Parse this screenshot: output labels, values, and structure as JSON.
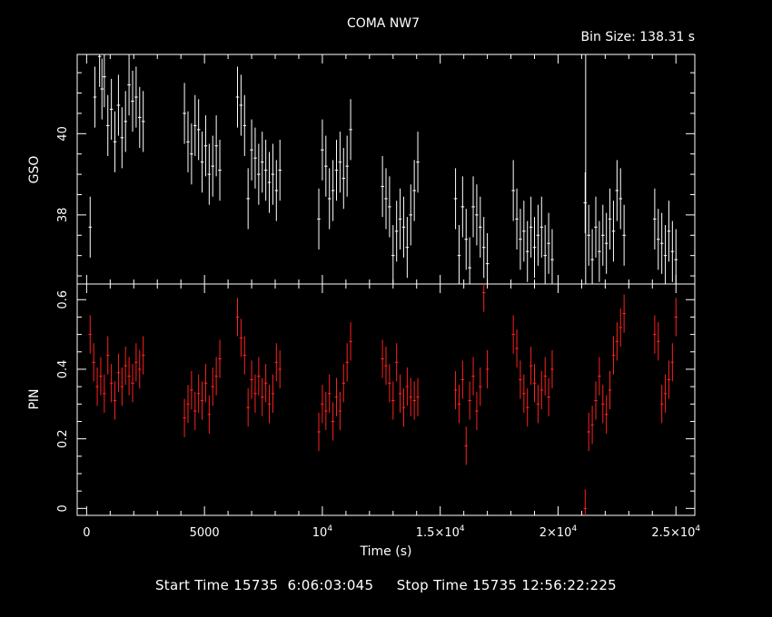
{
  "title": "COMA NW7",
  "bin_size": "Bin Size: 138.31 s",
  "footer": {
    "start_label": "Start Time",
    "start_value": "15735  6:06:03:045",
    "stop_label": "Stop Time",
    "stop_value": "15735 12:56:22:225"
  },
  "colors": {
    "background": "#000000",
    "axes": "#ffffff",
    "gso": "#ffffff",
    "pin": "#ff2020"
  },
  "chart_data": [
    {
      "type": "scatter",
      "title": "",
      "ylabel": "GSO",
      "xlabel": "Time (s)",
      "xlim": [
        -400,
        25800
      ],
      "ylim": [
        36.3,
        41.95
      ],
      "yticks": [
        38,
        40
      ],
      "series": [
        {
          "x": [
            150,
            350,
            550,
            650,
            750,
            900,
            1050,
            1200,
            1350,
            1500,
            1650,
            1800,
            1950,
            2100,
            2250,
            2400,
            4150,
            4300,
            4450,
            4600,
            4750,
            4900,
            5050,
            5200,
            5350,
            5500,
            5650,
            6400,
            6550,
            6700,
            6850,
            7000,
            7150,
            7300,
            7450,
            7600,
            7750,
            7900,
            8050,
            8200,
            9850,
            10000,
            10150,
            10300,
            10450,
            10600,
            10750,
            10900,
            11050,
            11200,
            12550,
            12700,
            12850,
            13000,
            13150,
            13300,
            13450,
            13600,
            13750,
            13900,
            14050,
            15650,
            15800,
            15950,
            16100,
            16250,
            16400,
            16550,
            16700,
            16850,
            17000,
            18100,
            18250,
            18400,
            18550,
            18700,
            18850,
            19000,
            19150,
            19300,
            19450,
            19600,
            19750,
            21150,
            21300,
            21450,
            21600,
            21750,
            21900,
            22050,
            22200,
            22350,
            22500,
            22650,
            22800,
            24100,
            24250,
            24400,
            24550,
            24700,
            24850,
            25000
          ],
          "y": [
            37.7,
            40.9,
            41.9,
            41.1,
            41.4,
            40.2,
            40.6,
            39.8,
            40.7,
            39.9,
            40.3,
            41.2,
            40.8,
            40.9,
            40.4,
            40.3,
            40.5,
            39.8,
            39.5,
            40.2,
            40.1,
            39.3,
            39.7,
            39.0,
            39.2,
            39.7,
            39.1,
            40.9,
            40.7,
            40.2,
            38.4,
            39.6,
            39.4,
            39.0,
            39.3,
            39.1,
            38.8,
            39.0,
            38.6,
            39.1,
            37.9,
            39.6,
            39.2,
            38.4,
            38.6,
            39.1,
            39.3,
            38.9,
            39.2,
            40.1,
            38.7,
            38.4,
            38.2,
            37.0,
            37.6,
            37.9,
            37.7,
            37.2,
            38.0,
            38.6,
            39.3,
            38.4,
            37.0,
            38.2,
            37.4,
            36.7,
            38.2,
            38.0,
            37.7,
            37.2,
            36.8,
            38.6,
            37.9,
            37.4,
            37.6,
            37.1,
            37.7,
            37.2,
            37.5,
            37.7,
            37.0,
            37.3,
            36.9,
            38.3,
            37.5,
            36.9,
            37.7,
            37.1,
            37.5,
            37.3,
            37.9,
            37.6,
            38.6,
            38.4,
            37.5,
            37.9,
            37.4,
            37.3,
            37.0,
            37.6,
            37.1,
            36.9
          ],
          "yerr": 0.75
        }
      ]
    },
    {
      "type": "scatter",
      "title": "",
      "ylabel": "PIN",
      "xlabel": "Time (s)",
      "xlim": [
        -400,
        25800
      ],
      "ylim": [
        -0.02,
        0.645
      ],
      "yticks": [
        0,
        0.2,
        0.4,
        0.6
      ],
      "xtick_labels": [
        "0",
        "5000",
        "10",
        "1.5×10",
        "2×10",
        "2.5×10"
      ],
      "xtick_exps": [
        "",
        "",
        "4",
        "4",
        "4",
        "4"
      ],
      "series": [
        {
          "x": [
            150,
            300,
            450,
            600,
            750,
            900,
            1050,
            1200,
            1350,
            1500,
            1650,
            1800,
            1950,
            2100,
            2250,
            2400,
            4150,
            4300,
            4450,
            4600,
            4750,
            4900,
            5050,
            5200,
            5350,
            5500,
            5650,
            6400,
            6550,
            6700,
            6850,
            7000,
            7150,
            7300,
            7450,
            7600,
            7750,
            7900,
            8050,
            8200,
            9850,
            10000,
            10150,
            10300,
            10450,
            10600,
            10750,
            10900,
            11050,
            11200,
            12550,
            12700,
            12850,
            13000,
            13150,
            13300,
            13450,
            13600,
            13750,
            13900,
            14050,
            15650,
            15800,
            15950,
            16100,
            16250,
            16400,
            16550,
            16700,
            16850,
            17000,
            18100,
            18250,
            18400,
            18550,
            18700,
            18850,
            19000,
            19150,
            19300,
            19450,
            19600,
            19750,
            21150,
            21300,
            21450,
            21600,
            21750,
            21900,
            22050,
            22200,
            22350,
            22500,
            22650,
            22800,
            24100,
            24250,
            24400,
            24550,
            24700,
            24850,
            25000
          ],
          "y": [
            0.5,
            0.42,
            0.35,
            0.38,
            0.33,
            0.44,
            0.36,
            0.31,
            0.39,
            0.35,
            0.41,
            0.38,
            0.36,
            0.42,
            0.4,
            0.44,
            0.26,
            0.3,
            0.34,
            0.28,
            0.33,
            0.31,
            0.36,
            0.27,
            0.35,
            0.38,
            0.43,
            0.55,
            0.49,
            0.44,
            0.29,
            0.37,
            0.33,
            0.38,
            0.32,
            0.36,
            0.3,
            0.33,
            0.42,
            0.4,
            0.22,
            0.3,
            0.28,
            0.33,
            0.25,
            0.32,
            0.28,
            0.36,
            0.42,
            0.48,
            0.43,
            0.41,
            0.36,
            0.31,
            0.42,
            0.33,
            0.29,
            0.35,
            0.32,
            0.31,
            0.32,
            0.34,
            0.3,
            0.37,
            0.18,
            0.31,
            0.38,
            0.28,
            0.35,
            0.62,
            0.4,
            0.5,
            0.46,
            0.37,
            0.33,
            0.29,
            0.41,
            0.36,
            0.3,
            0.34,
            0.38,
            0.32,
            0.4,
            0.0,
            0.22,
            0.24,
            0.31,
            0.38,
            0.3,
            0.27,
            0.34,
            0.44,
            0.48,
            0.52,
            0.56,
            0.5,
            0.48,
            0.3,
            0.33,
            0.37,
            0.42,
            0.55
          ],
          "yerr": 0.055
        }
      ]
    }
  ]
}
